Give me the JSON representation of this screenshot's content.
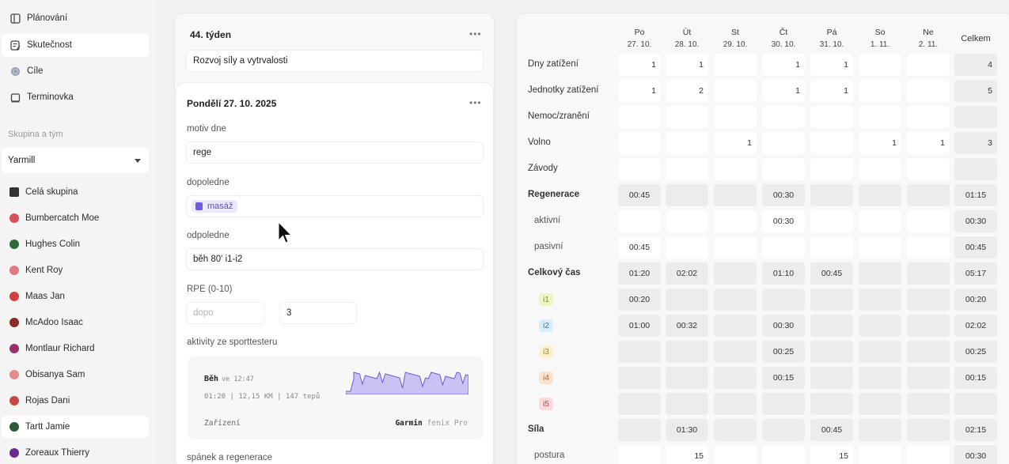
{
  "sidebar": {
    "nav": [
      {
        "label": "Plánování",
        "icon": "planning-icon"
      },
      {
        "label": "Skutečnost",
        "icon": "actual-icon"
      },
      {
        "label": "Cíle",
        "icon": "goals-icon"
      },
      {
        "label": "Terminovka",
        "icon": "calendar-icon"
      }
    ],
    "section_label": "Skupina a tým",
    "team_select": "Yarmill",
    "members": [
      {
        "label": "Celá skupina",
        "color": "#333333"
      },
      {
        "label": "Bumbercatch Moe",
        "color": "#d8505a"
      },
      {
        "label": "Hughes Colin",
        "color": "#2f6b3a"
      },
      {
        "label": "Kent Roy",
        "color": "#e07a80"
      },
      {
        "label": "Maas Jan",
        "color": "#d44040"
      },
      {
        "label": "McAdoo Isaac",
        "color": "#8a2a2a"
      },
      {
        "label": "Montlaur Richard",
        "color": "#9a2f6a"
      },
      {
        "label": "Obisanya Sam",
        "color": "#e58a8a"
      },
      {
        "label": "Rojas Dani",
        "color": "#c84848"
      },
      {
        "label": "Tartt Jamie",
        "color": "#2f5a3a"
      },
      {
        "label": "Zoreaux Thierry",
        "color": "#6a2a8a"
      }
    ]
  },
  "week": {
    "title": "44. týden",
    "focus": "Rozvoj síly a vytrvalosti"
  },
  "day": {
    "title": "Pondělí 27. 10. 2025",
    "motiv_label": "motiv dne",
    "motiv_value": "rege",
    "am_label": "dopoledne",
    "am_chip": "masáž",
    "pm_label": "odpoledne",
    "pm_value": "běh 80' i1-i2",
    "rpe_label": "RPE (0-10)",
    "rpe_am_placeholder": "dopo",
    "rpe_pm_value": "3",
    "activities_label": "aktivity ze sporttesteru",
    "sleep_label": "spánek a regenerace"
  },
  "activity": {
    "name": "Běh",
    "when": "ve 12:47",
    "stats": "01:20 | 12,15 KM | 147 tepů",
    "device_label": "Zařízení",
    "device_brand": "Garmin",
    "device_model": "fenix Pro",
    "accent": "#6b5ce0"
  },
  "table": {
    "columns": [
      {
        "day": "Po",
        "date": "27. 10."
      },
      {
        "day": "Út",
        "date": "28. 10."
      },
      {
        "day": "St",
        "date": "29. 10."
      },
      {
        "day": "Čt",
        "date": "30. 10."
      },
      {
        "day": "Pá",
        "date": "31. 10."
      },
      {
        "day": "So",
        "date": "1. 11."
      },
      {
        "day": "Ne",
        "date": "2. 11."
      }
    ],
    "total_label": "Celkem",
    "rows": [
      {
        "label": "Dny zatížení",
        "style": "normal",
        "cells": [
          "1",
          "1",
          "",
          "1",
          "1",
          "",
          ""
        ],
        "total": "4",
        "shade": "w"
      },
      {
        "label": "Jednotky zatížení",
        "style": "normal",
        "cells": [
          "1",
          "2",
          "",
          "1",
          "1",
          "",
          ""
        ],
        "total": "5",
        "shade": "w"
      },
      {
        "label": "Nemoc/zranění",
        "style": "normal",
        "cells": [
          "",
          "",
          "",
          "",
          "",
          "",
          ""
        ],
        "total": "",
        "shade": "w"
      },
      {
        "label": "Volno",
        "style": "normal",
        "cells": [
          "",
          "",
          "1",
          "",
          "",
          "1",
          "1"
        ],
        "total": "3",
        "shade": "w"
      },
      {
        "label": "Závody",
        "style": "normal",
        "cells": [
          "",
          "",
          "",
          "",
          "",
          "",
          ""
        ],
        "total": "",
        "shade": "w"
      },
      {
        "label": "Regenerace",
        "style": "bold",
        "cells": [
          "00:45",
          "",
          "",
          "00:30",
          "",
          "",
          ""
        ],
        "total": "01:15",
        "shade": "g"
      },
      {
        "label": "aktivní",
        "style": "sub",
        "cells": [
          "",
          "",
          "",
          "00:30",
          "",
          "",
          ""
        ],
        "total": "00:30",
        "shade": "w"
      },
      {
        "label": "pasivní",
        "style": "sub",
        "cells": [
          "00:45",
          "",
          "",
          "",
          "",
          "",
          ""
        ],
        "total": "00:45",
        "shade": "w"
      },
      {
        "label": "Celkový čas",
        "style": "bold",
        "cells": [
          "01:20",
          "02:02",
          "",
          "01:10",
          "00:45",
          "",
          ""
        ],
        "total": "05:17",
        "shade": "g"
      },
      {
        "label": "i1",
        "style": "zone",
        "zone_bg": "#eef6c8",
        "zone_fg": "#7a8a1a",
        "cells": [
          "00:20",
          "",
          "",
          "",
          "",
          "",
          ""
        ],
        "total": "00:20",
        "shade": "g"
      },
      {
        "label": "i2",
        "style": "zone",
        "zone_bg": "#d9eefa",
        "zone_fg": "#2a7ab0",
        "cells": [
          "01:00",
          "00:32",
          "",
          "00:30",
          "",
          "",
          ""
        ],
        "total": "02:02",
        "shade": "g"
      },
      {
        "label": "i3",
        "style": "zone",
        "zone_bg": "#fbf0d0",
        "zone_fg": "#b08a1a",
        "cells": [
          "",
          "",
          "",
          "00:25",
          "",
          "",
          ""
        ],
        "total": "00:25",
        "shade": "g"
      },
      {
        "label": "i4",
        "style": "zone",
        "zone_bg": "#fbe2cf",
        "zone_fg": "#c0602a",
        "cells": [
          "",
          "",
          "",
          "00:15",
          "",
          "",
          ""
        ],
        "total": "00:15",
        "shade": "g"
      },
      {
        "label": "i5",
        "style": "zone",
        "zone_bg": "#fadadc",
        "zone_fg": "#c0404a",
        "cells": [
          "",
          "",
          "",
          "",
          "",
          "",
          ""
        ],
        "total": "",
        "shade": "g"
      },
      {
        "label": "Síla",
        "style": "bold",
        "cells": [
          "",
          "01:30",
          "",
          "",
          "00:45",
          "",
          ""
        ],
        "total": "02:15",
        "shade": "g"
      },
      {
        "label": "postura",
        "style": "sub",
        "cells": [
          "",
          "15",
          "",
          "",
          "15",
          "",
          ""
        ],
        "total": "00:30",
        "shade": "w"
      }
    ]
  }
}
